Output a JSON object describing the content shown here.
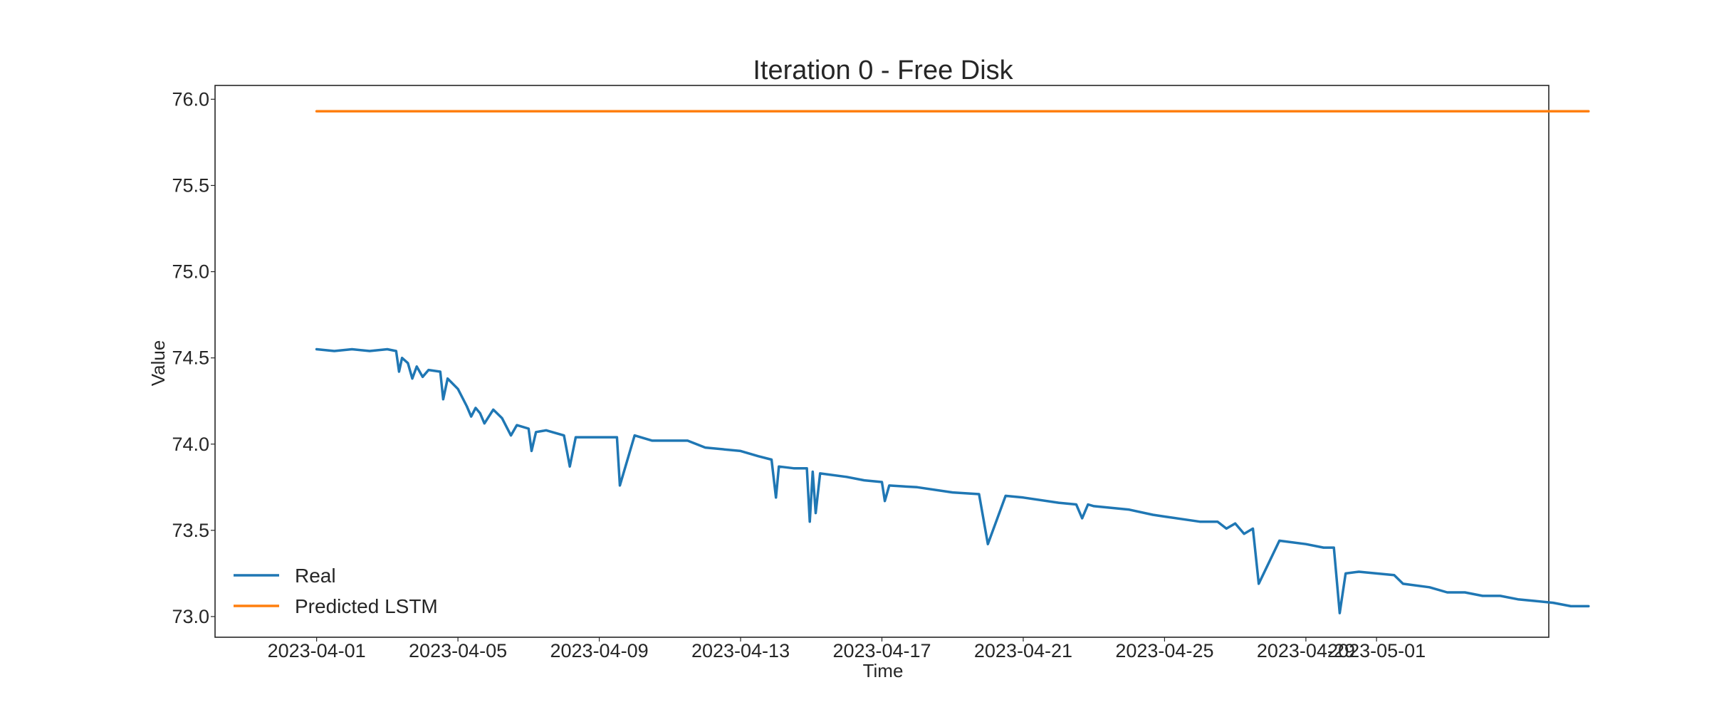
{
  "chart_data": {
    "type": "line",
    "title": "Iteration 0 - Free Disk",
    "xlabel": "Time",
    "ylabel": "Value",
    "xlim": [
      "2023-03-29T03:00",
      "2023-05-05T21:00"
    ],
    "ylim": [
      72.88,
      76.08
    ],
    "grid": false,
    "legend": "bottom-left",
    "x_ticks": [
      "2023-04-01",
      "2023-04-05",
      "2023-04-09",
      "2023-04-13",
      "2023-04-17",
      "2023-04-21",
      "2023-04-25",
      "2023-04-29",
      "2023-05-01"
    ],
    "y_ticks": [
      "73.0",
      "73.5",
      "74.0",
      "74.5",
      "75.0",
      "75.5",
      "76.0"
    ],
    "series": [
      {
        "name": "Real",
        "color": "#1f77b4",
        "points": [
          [
            "2023-04-01T00:00",
            74.55
          ],
          [
            "2023-04-01T12:00",
            74.54
          ],
          [
            "2023-04-02T00:00",
            74.55
          ],
          [
            "2023-04-02T12:00",
            74.54
          ],
          [
            "2023-04-03T00:00",
            74.55
          ],
          [
            "2023-04-03T06:00",
            74.54
          ],
          [
            "2023-04-03T08:00",
            74.42
          ],
          [
            "2023-04-03T10:00",
            74.5
          ],
          [
            "2023-04-03T14:00",
            74.47
          ],
          [
            "2023-04-03T17:00",
            74.38
          ],
          [
            "2023-04-03T20:00",
            74.45
          ],
          [
            "2023-04-04T00:00",
            74.39
          ],
          [
            "2023-04-04T04:00",
            74.43
          ],
          [
            "2023-04-04T12:00",
            74.42
          ],
          [
            "2023-04-04T14:00",
            74.26
          ],
          [
            "2023-04-04T17:00",
            74.38
          ],
          [
            "2023-04-05T00:00",
            74.32
          ],
          [
            "2023-04-05T06:00",
            74.22
          ],
          [
            "2023-04-05T09:00",
            74.16
          ],
          [
            "2023-04-05T12:00",
            74.21
          ],
          [
            "2023-04-05T15:00",
            74.18
          ],
          [
            "2023-04-05T18:00",
            74.12
          ],
          [
            "2023-04-06T00:00",
            74.2
          ],
          [
            "2023-04-06T06:00",
            74.15
          ],
          [
            "2023-04-06T12:00",
            74.05
          ],
          [
            "2023-04-06T16:00",
            74.11
          ],
          [
            "2023-04-07T00:00",
            74.09
          ],
          [
            "2023-04-07T02:00",
            73.96
          ],
          [
            "2023-04-07T05:00",
            74.07
          ],
          [
            "2023-04-07T12:00",
            74.08
          ],
          [
            "2023-04-08T00:00",
            74.05
          ],
          [
            "2023-04-08T04:00",
            73.87
          ],
          [
            "2023-04-08T08:00",
            74.04
          ],
          [
            "2023-04-09T00:00",
            74.04
          ],
          [
            "2023-04-09T12:00",
            74.04
          ],
          [
            "2023-04-09T14:00",
            73.76
          ],
          [
            "2023-04-10T00:00",
            74.05
          ],
          [
            "2023-04-10T12:00",
            74.02
          ],
          [
            "2023-04-11T12:00",
            74.02
          ],
          [
            "2023-04-12T00:00",
            73.98
          ],
          [
            "2023-04-13T00:00",
            73.96
          ],
          [
            "2023-04-13T12:00",
            73.93
          ],
          [
            "2023-04-13T21:00",
            73.91
          ],
          [
            "2023-04-14T00:00",
            73.69
          ],
          [
            "2023-04-14T02:00",
            73.87
          ],
          [
            "2023-04-14T12:00",
            73.86
          ],
          [
            "2023-04-14T21:00",
            73.86
          ],
          [
            "2023-04-14T23:00",
            73.55
          ],
          [
            "2023-04-15T01:00",
            73.84
          ],
          [
            "2023-04-15T03:00",
            73.6
          ],
          [
            "2023-04-15T06:00",
            73.83
          ],
          [
            "2023-04-16T00:00",
            73.81
          ],
          [
            "2023-04-16T12:00",
            73.79
          ],
          [
            "2023-04-17T00:00",
            73.78
          ],
          [
            "2023-04-17T02:00",
            73.67
          ],
          [
            "2023-04-17T05:00",
            73.76
          ],
          [
            "2023-04-18T00:00",
            73.75
          ],
          [
            "2023-04-19T00:00",
            73.72
          ],
          [
            "2023-04-19T18:00",
            73.71
          ],
          [
            "2023-04-20T00:00",
            73.42
          ],
          [
            "2023-04-20T12:00",
            73.7
          ],
          [
            "2023-04-21T00:00",
            73.69
          ],
          [
            "2023-04-22T00:00",
            73.66
          ],
          [
            "2023-04-22T12:00",
            73.65
          ],
          [
            "2023-04-22T16:00",
            73.57
          ],
          [
            "2023-04-22T20:00",
            73.65
          ],
          [
            "2023-04-23T00:00",
            73.64
          ],
          [
            "2023-04-24T00:00",
            73.62
          ],
          [
            "2023-04-24T16:00",
            73.59
          ],
          [
            "2023-04-25T00:00",
            73.58
          ],
          [
            "2023-04-26T00:00",
            73.55
          ],
          [
            "2023-04-26T12:00",
            73.55
          ],
          [
            "2023-04-26T18:00",
            73.51
          ],
          [
            "2023-04-27T00:00",
            73.54
          ],
          [
            "2023-04-27T06:00",
            73.48
          ],
          [
            "2023-04-27T12:00",
            73.51
          ],
          [
            "2023-04-27T16:00",
            73.19
          ],
          [
            "2023-04-28T06:00",
            73.44
          ],
          [
            "2023-04-29T00:00",
            73.42
          ],
          [
            "2023-04-29T12:00",
            73.4
          ],
          [
            "2023-04-29T19:00",
            73.4
          ],
          [
            "2023-04-29T23:00",
            73.02
          ],
          [
            "2023-04-30T03:00",
            73.25
          ],
          [
            "2023-04-30T12:00",
            73.26
          ],
          [
            "2023-05-01T00:00",
            73.25
          ],
          [
            "2023-05-01T12:00",
            73.24
          ],
          [
            "2023-05-01T18:00",
            73.19
          ],
          [
            "2023-05-02T12:00",
            73.17
          ],
          [
            "2023-05-03T00:00",
            73.14
          ],
          [
            "2023-05-03T12:00",
            73.14
          ],
          [
            "2023-05-04T00:00",
            73.12
          ],
          [
            "2023-05-04T12:00",
            73.12
          ],
          [
            "2023-05-05T00:00",
            73.1
          ],
          [
            "2023-05-05T12:00",
            73.09
          ],
          [
            "2023-05-06T00:00",
            73.08
          ],
          [
            "2023-05-06T12:00",
            73.06
          ],
          [
            "2023-05-07T00:00",
            73.06
          ]
        ]
      },
      {
        "name": "Predicted LSTM",
        "color": "#ff7f0e",
        "points": [
          [
            "2023-04-01T00:00",
            75.93
          ],
          [
            "2023-05-07T00:00",
            75.93
          ]
        ]
      }
    ]
  }
}
